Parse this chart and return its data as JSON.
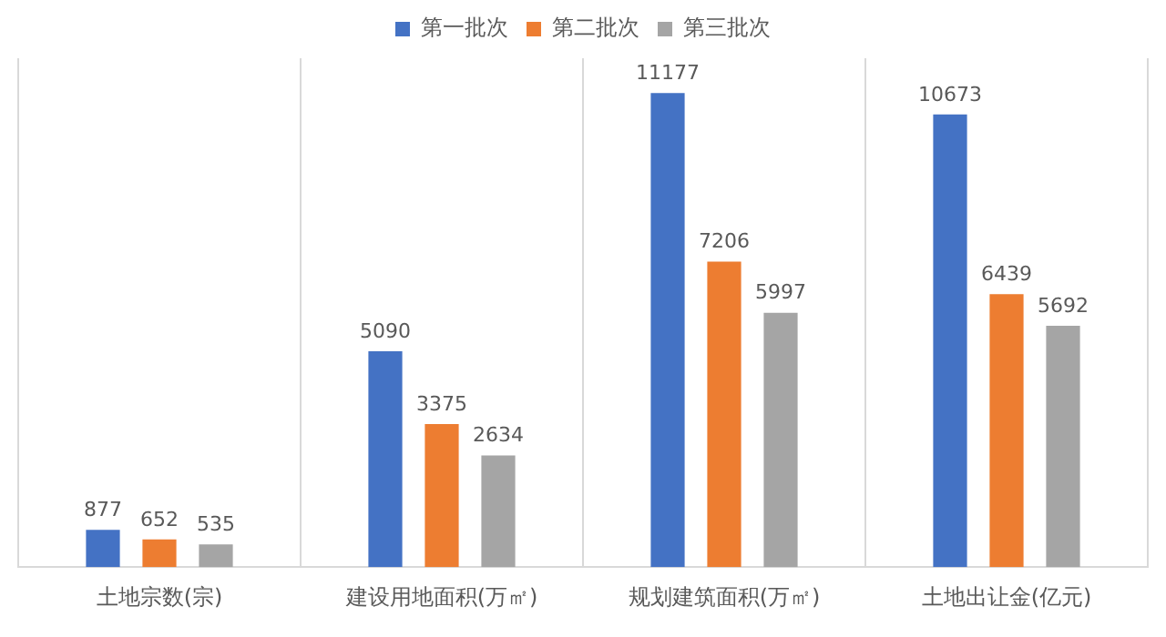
{
  "chart_data": {
    "type": "bar",
    "categories": [
      "土地宗数(宗)",
      "建设用地面积(万㎡)",
      "规划建筑面积(万㎡)",
      "土地出让金(亿元)"
    ],
    "series": [
      {
        "name": "第一批次",
        "color": "#4472c4",
        "values": [
          877,
          5090,
          11177,
          10673
        ]
      },
      {
        "name": "第二批次",
        "color": "#ed7d31",
        "values": [
          652,
          3375,
          7206,
          6439
        ]
      },
      {
        "name": "第三批次",
        "color": "#a5a5a5",
        "values": [
          535,
          2634,
          5997,
          5692
        ]
      }
    ],
    "ylim": [
      0,
      12000
    ],
    "tick_labels": "x",
    "grid": "x",
    "legend": "top",
    "data_labels": true
  }
}
